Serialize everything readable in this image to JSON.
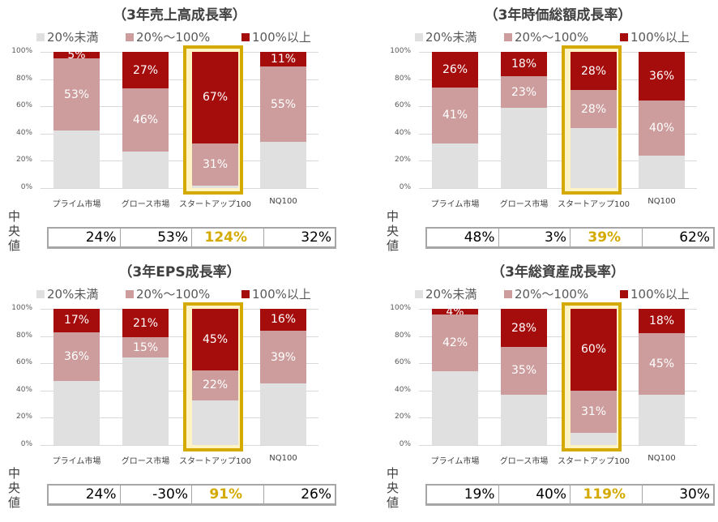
{
  "legend": [
    "20%未満",
    "20%～100%",
    "100%以上"
  ],
  "median_label": "中央値",
  "colors": {
    "low": "#e0e0e0",
    "mid": "#cd9d9d",
    "high": "#a50c0c",
    "highlight": "#d4aa00"
  },
  "chart_data": [
    {
      "type": "bar",
      "stacked": true,
      "title": "（3年売上高成長率）",
      "categories": [
        "プライム市場",
        "グロース市場",
        "スタートアップ100",
        "NQ100"
      ],
      "yticks": [
        "0%",
        "20%",
        "40%",
        "60%",
        "80%",
        "100%"
      ],
      "ylim": [
        0,
        100
      ],
      "series": [
        {
          "name": "20%未満",
          "values": [
            42,
            27,
            2,
            34
          ]
        },
        {
          "name": "20%～100%",
          "values": [
            53,
            46,
            31,
            55
          ]
        },
        {
          "name": "100%以上",
          "values": [
            5,
            27,
            67,
            11
          ]
        }
      ],
      "labels": [
        [
          null,
          null,
          null,
          null
        ],
        [
          "53%",
          "46%",
          "31%",
          "55%"
        ],
        [
          "5%",
          "27%",
          "67%",
          "11%"
        ]
      ],
      "median": [
        "24%",
        "53%",
        "124%",
        "32%"
      ]
    },
    {
      "type": "bar",
      "stacked": true,
      "title": "（3年時価総額成長率）",
      "categories": [
        "プライム市場",
        "グロース市場",
        "スタートアップ100",
        "NQ100"
      ],
      "yticks": [
        "0%",
        "20%",
        "40%",
        "60%",
        "80%",
        "100%"
      ],
      "ylim": [
        0,
        100
      ],
      "series": [
        {
          "name": "20%未満",
          "values": [
            33,
            59,
            44,
            24
          ]
        },
        {
          "name": "20%～100%",
          "values": [
            41,
            23,
            28,
            40
          ]
        },
        {
          "name": "100%以上",
          "values": [
            26,
            18,
            28,
            36
          ]
        }
      ],
      "labels": [
        [
          null,
          null,
          null,
          null
        ],
        [
          "41%",
          "23%",
          "28%",
          "40%"
        ],
        [
          "26%",
          "18%",
          "28%",
          "36%"
        ]
      ],
      "median": [
        "48%",
        "3%",
        "39%",
        "62%"
      ]
    },
    {
      "type": "bar",
      "stacked": true,
      "title": "（3年EPS成長率）",
      "categories": [
        "プライム市場",
        "グロース市場",
        "スタートアップ100",
        "NQ100"
      ],
      "yticks": [
        "0%",
        "20%",
        "40%",
        "60%",
        "80%",
        "100%"
      ],
      "ylim": [
        0,
        100
      ],
      "series": [
        {
          "name": "20%未満",
          "values": [
            47,
            64,
            33,
            45
          ]
        },
        {
          "name": "20%～100%",
          "values": [
            36,
            15,
            22,
            39
          ]
        },
        {
          "name": "100%以上",
          "values": [
            17,
            21,
            45,
            16
          ]
        }
      ],
      "labels": [
        [
          null,
          null,
          null,
          null
        ],
        [
          "36%",
          "15%",
          "22%",
          "39%"
        ],
        [
          "17%",
          "21%",
          "45%",
          "16%"
        ]
      ],
      "median": [
        "24%",
        "-30%",
        "91%",
        "26%"
      ]
    },
    {
      "type": "bar",
      "stacked": true,
      "title": "（3年総資産成長率）",
      "categories": [
        "プライム市場",
        "グロース市場",
        "スタートアップ100",
        "NQ100"
      ],
      "yticks": [
        "0%",
        "20%",
        "40%",
        "60%",
        "80%",
        "100%"
      ],
      "ylim": [
        0,
        100
      ],
      "series": [
        {
          "name": "20%未満",
          "values": [
            54,
            37,
            9,
            37
          ]
        },
        {
          "name": "20%～100%",
          "values": [
            42,
            35,
            31,
            45
          ]
        },
        {
          "name": "100%以上",
          "values": [
            4,
            28,
            60,
            18
          ]
        }
      ],
      "labels": [
        [
          null,
          null,
          null,
          null
        ],
        [
          "42%",
          "35%",
          "31%",
          "45%"
        ],
        [
          "4%",
          "28%",
          "60%",
          "18%"
        ]
      ],
      "median": [
        "19%",
        "40%",
        "119%",
        "30%"
      ]
    }
  ]
}
